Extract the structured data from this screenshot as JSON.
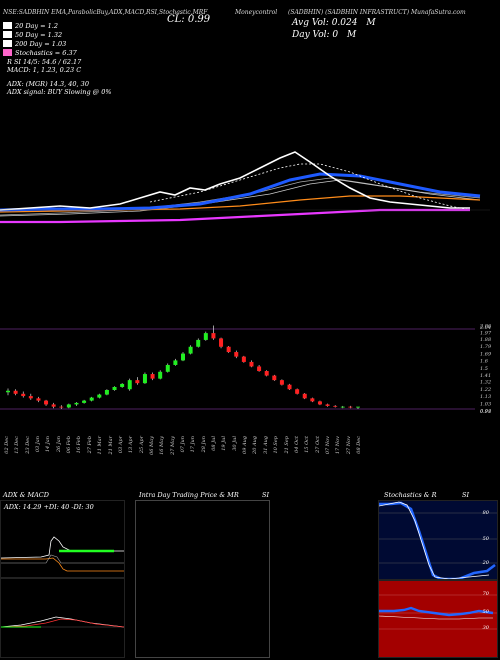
{
  "header": {
    "line": "NSE:SADBHIN EMA,ParabolicBuy,ADX,MACD,RSI,Stochastic,MRF",
    "cl": "CL: 0.99",
    "mc_label": "Moneycontrol",
    "company": "(SADBHIN) (SADBHIN INFRASTRUCT) MunafaSutra.com",
    "avg_vol": "Avg Vol: 0.024",
    "avg_vol_unit": "M",
    "day_vol": "Day Vol: 0",
    "day_vol_unit": "M"
  },
  "legend": [
    {
      "label": "20 Day = 1.2",
      "color": "#ffffff"
    },
    {
      "label": "50 Day = 1.32",
      "color": "#ffffff"
    },
    {
      "label": "200 Day = 1.03",
      "color": "#ffffff"
    },
    {
      "label": "Stochastics = 6.37",
      "color": "#ff66cc"
    }
  ],
  "indicators": {
    "rsi": "R               SI 14/5: 54.6  / 62.17",
    "macd": "MACD: 1,  1.23,  0.23  C",
    "adx": "ADX:                                  (MGR) 14.3,  40,  30",
    "adx_signal": "ADX  signal:                            BUY Slowing @ 0%"
  },
  "price_axis": [
    {
      "v": 2.06,
      "t": "2.06"
    },
    {
      "v": 2.04,
      "t": "2.04"
    },
    {
      "v": 1.97,
      "t": "1.97"
    },
    {
      "v": 1.88,
      "t": "1.88"
    },
    {
      "v": 1.79,
      "t": "1.79"
    },
    {
      "v": 1.69,
      "t": "1.69"
    },
    {
      "v": 1.6,
      "t": "1.6"
    },
    {
      "v": 1.5,
      "t": "1.5"
    },
    {
      "v": 1.41,
      "t": "1.41"
    },
    {
      "v": 1.32,
      "t": "1.32"
    },
    {
      "v": 1.22,
      "t": "1.22"
    },
    {
      "v": 1.13,
      "t": "1.13"
    },
    {
      "v": 1.03,
      "t": "1.03"
    },
    {
      "v": 0.94,
      "t": "0.94"
    },
    {
      "v": 0.93,
      "t": "0.93"
    }
  ],
  "dates": [
    "02 Dec",
    "13 Dec",
    "23 Dec",
    "03 Jan",
    "14 Jan",
    "26 Jan",
    "06 Feb",
    "16 Feb",
    "27 Feb",
    "11 Mar",
    "21 Mar",
    "03 Apr",
    "13 Apr",
    "25 Apr",
    "06 May",
    "16 May",
    "27 May",
    "07 Jun",
    "17 Jun",
    "28 Jun",
    "08 Jul",
    "19 Jul",
    "30 Jul",
    "09 Aug",
    "20 Aug",
    "31 Aug",
    "10 Sep",
    "21 Sep",
    "04 Oct",
    "15 Oct",
    "27 Oct",
    "07 Nov",
    "17 Nov",
    "27 Nov",
    "08 Dec"
  ],
  "candles": [
    {
      "o": 1.18,
      "h": 1.23,
      "l": 1.14,
      "c": 1.2
    },
    {
      "o": 1.2,
      "h": 1.22,
      "l": 1.14,
      "c": 1.16
    },
    {
      "o": 1.16,
      "h": 1.19,
      "l": 1.11,
      "c": 1.13
    },
    {
      "o": 1.13,
      "h": 1.16,
      "l": 1.08,
      "c": 1.1
    },
    {
      "o": 1.1,
      "h": 1.12,
      "l": 1.05,
      "c": 1.07
    },
    {
      "o": 1.07,
      "h": 1.08,
      "l": 1.0,
      "c": 1.02
    },
    {
      "o": 1.02,
      "h": 1.04,
      "l": 0.97,
      "c": 0.99
    },
    {
      "o": 0.99,
      "h": 1.01,
      "l": 0.96,
      "c": 0.98
    },
    {
      "o": 0.98,
      "h": 1.03,
      "l": 0.97,
      "c": 1.02
    },
    {
      "o": 1.02,
      "h": 1.05,
      "l": 1.0,
      "c": 1.04
    },
    {
      "o": 1.04,
      "h": 1.08,
      "l": 1.03,
      "c": 1.07
    },
    {
      "o": 1.07,
      "h": 1.12,
      "l": 1.06,
      "c": 1.11
    },
    {
      "o": 1.11,
      "h": 1.16,
      "l": 1.1,
      "c": 1.15
    },
    {
      "o": 1.15,
      "h": 1.22,
      "l": 1.14,
      "c": 1.21
    },
    {
      "o": 1.21,
      "h": 1.26,
      "l": 1.2,
      "c": 1.25
    },
    {
      "o": 1.25,
      "h": 1.3,
      "l": 1.24,
      "c": 1.29
    },
    {
      "o": 1.22,
      "h": 1.36,
      "l": 1.2,
      "c": 1.34
    },
    {
      "o": 1.34,
      "h": 1.38,
      "l": 1.28,
      "c": 1.3
    },
    {
      "o": 1.3,
      "h": 1.44,
      "l": 1.29,
      "c": 1.42
    },
    {
      "o": 1.42,
      "h": 1.44,
      "l": 1.34,
      "c": 1.36
    },
    {
      "o": 1.36,
      "h": 1.47,
      "l": 1.35,
      "c": 1.45
    },
    {
      "o": 1.45,
      "h": 1.56,
      "l": 1.44,
      "c": 1.54
    },
    {
      "o": 1.54,
      "h": 1.62,
      "l": 1.53,
      "c": 1.6
    },
    {
      "o": 1.6,
      "h": 1.71,
      "l": 1.59,
      "c": 1.69
    },
    {
      "o": 1.69,
      "h": 1.8,
      "l": 1.68,
      "c": 1.78
    },
    {
      "o": 1.78,
      "h": 1.89,
      "l": 1.77,
      "c": 1.87
    },
    {
      "o": 1.87,
      "h": 1.98,
      "l": 1.86,
      "c": 1.96
    },
    {
      "o": 1.96,
      "h": 2.06,
      "l": 1.87,
      "c": 1.89
    },
    {
      "o": 1.89,
      "h": 1.9,
      "l": 1.76,
      "c": 1.78
    },
    {
      "o": 1.78,
      "h": 1.79,
      "l": 1.7,
      "c": 1.71
    },
    {
      "o": 1.71,
      "h": 1.73,
      "l": 1.63,
      "c": 1.65
    },
    {
      "o": 1.65,
      "h": 1.66,
      "l": 1.57,
      "c": 1.58
    },
    {
      "o": 1.58,
      "h": 1.6,
      "l": 1.51,
      "c": 1.52
    },
    {
      "o": 1.52,
      "h": 1.54,
      "l": 1.45,
      "c": 1.46
    },
    {
      "o": 1.46,
      "h": 1.47,
      "l": 1.39,
      "c": 1.4
    },
    {
      "o": 1.4,
      "h": 1.41,
      "l": 1.33,
      "c": 1.34
    },
    {
      "o": 1.34,
      "h": 1.35,
      "l": 1.27,
      "c": 1.28
    },
    {
      "o": 1.28,
      "h": 1.29,
      "l": 1.21,
      "c": 1.22
    },
    {
      "o": 1.22,
      "h": 1.23,
      "l": 1.15,
      "c": 1.16
    },
    {
      "o": 1.16,
      "h": 1.17,
      "l": 1.09,
      "c": 1.1
    },
    {
      "o": 1.1,
      "h": 1.11,
      "l": 1.05,
      "c": 1.06
    },
    {
      "o": 1.06,
      "h": 1.07,
      "l": 1.01,
      "c": 1.02
    },
    {
      "o": 1.02,
      "h": 1.03,
      "l": 0.99,
      "c": 1.0
    },
    {
      "o": 1.0,
      "h": 1.01,
      "l": 0.98,
      "c": 0.99
    },
    {
      "o": 0.99,
      "h": 1.0,
      "l": 0.97,
      "c": 0.99
    },
    {
      "o": 0.99,
      "h": 1.0,
      "l": 0.97,
      "c": 0.98
    },
    {
      "o": 0.98,
      "h": 0.99,
      "l": 0.96,
      "c": 0.99
    }
  ],
  "panels": {
    "adx_title": "ADX  & MACD",
    "adx_summary": "ADX: 14.29  +DI: 40  -DI: 30",
    "intraday_title": "Intra  Day Trading Price  & MR",
    "intraday_si": "SI",
    "stoch_title": "Stochastics & R",
    "stoch_si": "SI",
    "stoch_levels": [
      "80",
      "50",
      "20"
    ],
    "rsi_levels": [
      "70",
      "50",
      "30"
    ]
  }
}
